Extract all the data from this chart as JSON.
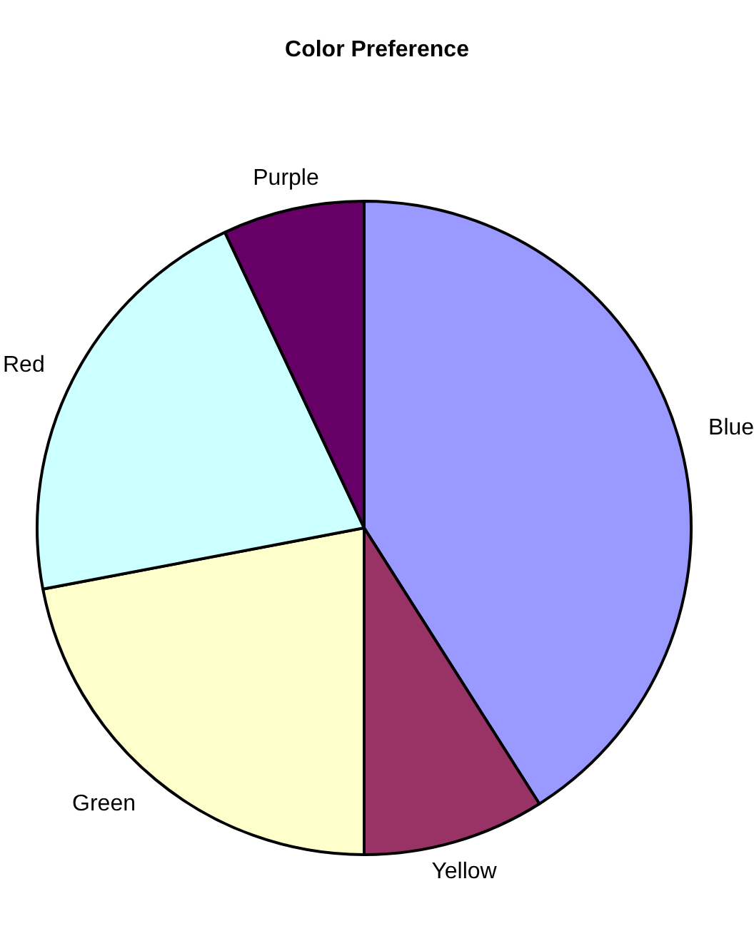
{
  "chart_data": {
    "type": "pie",
    "title": "Color Preference",
    "categories": [
      "Blue",
      "Yellow",
      "Green",
      "Red",
      "Purple"
    ],
    "values": [
      41,
      9,
      22,
      21,
      7
    ],
    "colors": [
      "#9999ff",
      "#993366",
      "#ffffcc",
      "#ccffff",
      "#660066"
    ],
    "legend": false
  }
}
